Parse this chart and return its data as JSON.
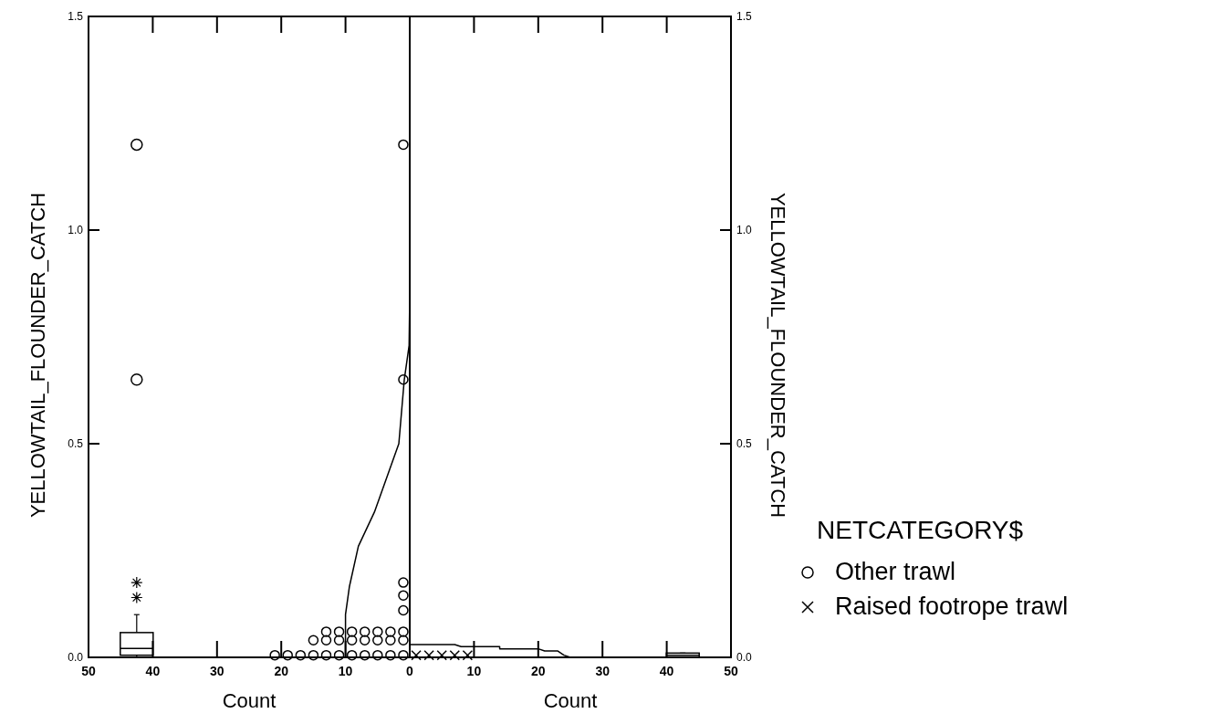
{
  "chart_data": [
    {
      "type": "scatter",
      "xlabel": "Count",
      "ylabel": "YELLOWTAIL_FLOUNDER_CATCH",
      "xlim": [
        50,
        0
      ],
      "xticks": [
        50,
        40,
        30,
        20,
        10,
        0
      ],
      "ylim": [
        0,
        1.5
      ],
      "yticks": [
        {
          "value": 0,
          "label": "0.0"
        },
        {
          "value": 0.5,
          "label": "0.5"
        },
        {
          "value": 1,
          "label": "1.0"
        },
        {
          "value": 1.5,
          "label": "1.5"
        }
      ],
      "series": [
        {
          "name": "Other trawl",
          "marker": "circle",
          "color": "#000000",
          "x": [
            1,
            3,
            5,
            7,
            9,
            11,
            13,
            15,
            17,
            19,
            21,
            1,
            3,
            5,
            7,
            9,
            11,
            13,
            15,
            1,
            3,
            5,
            7,
            9,
            11,
            13,
            1,
            1,
            1,
            1,
            1
          ],
          "values": [
            0.005,
            0.005,
            0.005,
            0.005,
            0.005,
            0.005,
            0.005,
            0.005,
            0.005,
            0.005,
            0.005,
            0.04,
            0.04,
            0.04,
            0.04,
            0.04,
            0.04,
            0.04,
            0.04,
            0.06,
            0.06,
            0.06,
            0.06,
            0.06,
            0.06,
            0.06,
            0.11,
            0.145,
            0.175,
            0.65,
            1.2
          ]
        },
        {
          "type": "line",
          "color": "#000000",
          "x": [
            10,
            10,
            9.4,
            8,
            5.5,
            1.7,
            0.85,
            0.1,
            0
          ],
          "values": [
            0,
            0.1,
            0.165,
            0.26,
            0.34,
            0.5,
            0.65,
            0.73,
            0.85
          ]
        },
        {
          "type": "box",
          "color": "#000000",
          "x": [
            42.5
          ],
          "boxes": [
            {
              "low": 0,
              "q1": 0.005,
              "median": 0.021,
              "q3": 0.058,
              "high": 0.1,
              "outliers": [
                0.14,
                0.175,
                0.65,
                1.2
              ]
            }
          ]
        }
      ]
    },
    {
      "type": "scatter",
      "xlabel": "Count",
      "ylabel": "YELLOWTAIL_FLOUNDER_CATCH",
      "xlim": [
        0,
        50
      ],
      "xticks": [
        {
          "value": 0,
          "label": null
        },
        10,
        20,
        30,
        40,
        50
      ],
      "ylim": [
        0,
        1.5
      ],
      "yticks": [
        {
          "value": 0,
          "label": "0.0"
        },
        {
          "value": 0.5,
          "label": "0.5"
        },
        {
          "value": 1,
          "label": "1.0"
        },
        {
          "value": 1.5,
          "label": "1.5"
        }
      ],
      "legend": "right",
      "legend_title": "NETCATEGORY$",
      "series": [
        {
          "name": "Raised footrope trawl",
          "marker": "cross",
          "color": "#000000",
          "x": [
            1,
            3,
            5,
            7,
            9
          ],
          "values": [
            0.005,
            0.005,
            0.005,
            0.005,
            0.005
          ]
        },
        {
          "type": "line",
          "color": "#000000",
          "x": [
            0,
            7,
            8,
            14,
            14,
            20,
            21,
            23,
            24,
            25
          ],
          "values": [
            0.03,
            0.03,
            0.025,
            0.025,
            0.02,
            0.02,
            0.015,
            0.015,
            0.005,
            0
          ]
        },
        {
          "type": "box",
          "color": "#000000",
          "x": [
            42.5
          ],
          "boxes": [
            {
              "low": 0,
              "q1": 0,
              "median": 0.005,
              "q3": 0.01,
              "high": 0.01
            }
          ]
        }
      ]
    }
  ]
}
